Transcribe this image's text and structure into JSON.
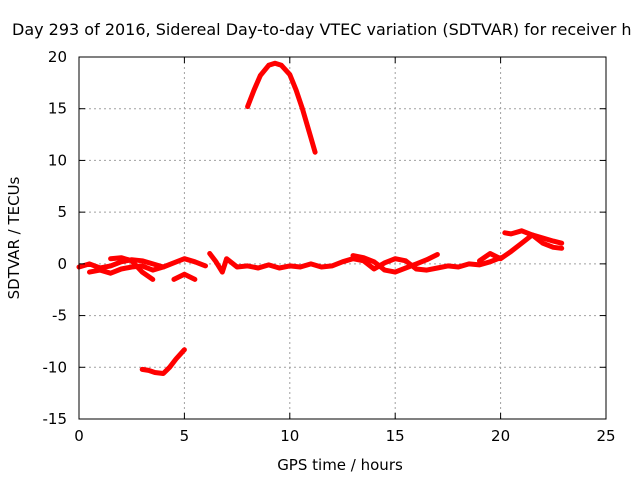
{
  "chart_data": {
    "type": "line",
    "title": "Day 293 of 2016, Sidereal Day-to-day VTEC variation (SDTVAR) for receiver h",
    "xlabel": "GPS time / hours",
    "ylabel": "SDTVAR / TECUs",
    "xlim": [
      0,
      25
    ],
    "ylim": [
      -15,
      20
    ],
    "xticks": [
      0,
      5,
      10,
      15,
      20,
      25
    ],
    "yticks": [
      -15,
      -10,
      -5,
      0,
      5,
      10,
      15,
      20
    ],
    "grid": true,
    "legend": "none",
    "series_color": "#ff0000",
    "series": [
      {
        "x": [
          0.0,
          0.5,
          1.0,
          1.5,
          2.0,
          2.5,
          3.0,
          3.5,
          4.0,
          4.5,
          5.0,
          5.5,
          6.0
        ],
        "y": [
          -0.3,
          0.0,
          -0.4,
          -0.2,
          0.2,
          0.4,
          0.3,
          0.0,
          -0.3,
          0.1,
          0.5,
          0.2,
          -0.2
        ]
      },
      {
        "x": [
          0.5,
          1.0,
          1.5,
          2.0,
          2.5,
          3.0,
          3.5,
          4.0
        ],
        "y": [
          -0.8,
          -0.6,
          -0.9,
          -0.5,
          -0.3,
          -0.2,
          -0.6,
          -0.3
        ]
      },
      {
        "x": [
          1.5,
          2.0,
          2.5,
          3.0,
          3.5
        ],
        "y": [
          0.5,
          0.6,
          0.3,
          -0.8,
          -1.5
        ]
      },
      {
        "x": [
          4.5,
          5.0,
          5.5
        ],
        "y": [
          -1.5,
          -1.0,
          -1.5
        ]
      },
      {
        "x": [
          6.2,
          6.5,
          6.8,
          7.0,
          7.5,
          8.0,
          8.5,
          9.0,
          9.5,
          10.0,
          10.5,
          11.0,
          11.5,
          12.0,
          12.5,
          13.0,
          13.5,
          14.0,
          14.5,
          15.0,
          15.5,
          16.0,
          16.5,
          17.0,
          17.5,
          18.0,
          18.5,
          19.0,
          19.5,
          20.0
        ],
        "y": [
          1.0,
          0.2,
          -0.8,
          0.5,
          -0.3,
          -0.2,
          -0.4,
          -0.1,
          -0.4,
          -0.2,
          -0.3,
          0.0,
          -0.3,
          -0.2,
          0.2,
          0.5,
          0.3,
          -0.5,
          0.1,
          0.5,
          0.3,
          -0.5,
          -0.6,
          -0.4,
          -0.2,
          -0.3,
          0.0,
          -0.1,
          0.2,
          0.6
        ]
      },
      {
        "x": [
          13.0,
          13.5,
          14.0,
          14.5,
          15.0,
          15.5,
          16.0,
          16.5,
          17.0
        ],
        "y": [
          0.8,
          0.6,
          0.2,
          -0.6,
          -0.8,
          -0.4,
          0.0,
          0.4,
          0.9
        ]
      },
      {
        "x": [
          19.0,
          19.5,
          20.0,
          20.5,
          21.0,
          21.5,
          22.0,
          22.5,
          22.9
        ],
        "y": [
          0.3,
          1.0,
          0.5,
          1.2,
          2.0,
          2.8,
          2.0,
          1.6,
          1.5
        ]
      },
      {
        "x": [
          20.2,
          20.5,
          21.0,
          21.5,
          22.0,
          22.5,
          22.9
        ],
        "y": [
          3.0,
          2.9,
          3.2,
          2.8,
          2.5,
          2.2,
          2.0
        ]
      },
      {
        "x": [
          8.0,
          8.3,
          8.6,
          9.0,
          9.3,
          9.6,
          10.0,
          10.3,
          10.6,
          11.0,
          11.2
        ],
        "y": [
          15.2,
          16.8,
          18.2,
          19.2,
          19.4,
          19.2,
          18.3,
          16.8,
          15.0,
          12.2,
          10.8
        ]
      },
      {
        "x": [
          3.0,
          3.3,
          3.6,
          4.0,
          4.3,
          4.6,
          5.0
        ],
        "y": [
          -10.2,
          -10.3,
          -10.5,
          -10.6,
          -10.0,
          -9.2,
          -8.3
        ]
      }
    ]
  }
}
